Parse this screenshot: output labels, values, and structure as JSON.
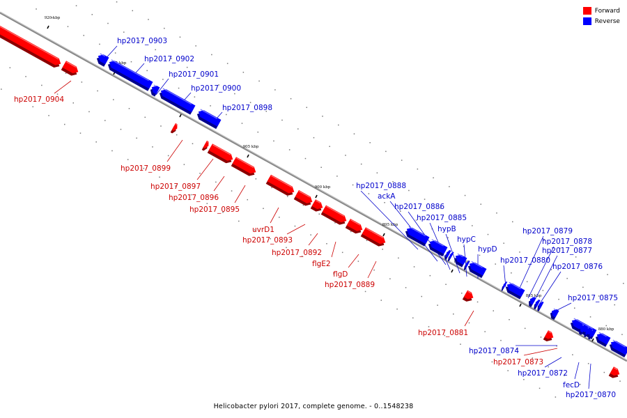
{
  "title": "Helicobacter pylori 2017, complete genome. - 0..1548238",
  "legend": [
    {
      "label": "Forward",
      "color": "#ff0000"
    },
    {
      "label": "Reverse",
      "color": "#0000ff"
    }
  ],
  "colors": {
    "forward": "#ff0000",
    "reverse": "#0000ff",
    "backbone": "#888888"
  },
  "ticks": [
    "920 kbp",
    "915 kbp",
    "910 kbp",
    "905 kbp",
    "900 kbp",
    "895 kbp",
    "890 kbp",
    "885 kbp",
    "880 kbp"
  ],
  "genes": [
    {
      "name": "",
      "strand": "forward"
    },
    {
      "name": "hp2017_0904",
      "strand": "forward"
    },
    {
      "name": "hp2017_0903",
      "strand": "reverse"
    },
    {
      "name": "hp2017_0902",
      "strand": "reverse"
    },
    {
      "name": "hp2017_0901",
      "strand": "reverse"
    },
    {
      "name": "hp2017_0900",
      "strand": "reverse"
    },
    {
      "name": "hp2017_0898",
      "strand": "reverse"
    },
    {
      "name": "hp2017_0899",
      "strand": "forward"
    },
    {
      "name": "hp2017_0897",
      "strand": "forward"
    },
    {
      "name": "hp2017_0896",
      "strand": "forward"
    },
    {
      "name": "hp2017_0895",
      "strand": "forward"
    },
    {
      "name": "uvrD1",
      "strand": "forward"
    },
    {
      "name": "hp2017_0893",
      "strand": "forward"
    },
    {
      "name": "hp2017_0892",
      "strand": "forward"
    },
    {
      "name": "flgE2",
      "strand": "forward"
    },
    {
      "name": "flgD",
      "strand": "forward"
    },
    {
      "name": "hp2017_0889",
      "strand": "forward"
    },
    {
      "name": "hp2017_0888",
      "strand": "reverse"
    },
    {
      "name": "ackA",
      "strand": "reverse"
    },
    {
      "name": "hp2017_0886",
      "strand": "reverse"
    },
    {
      "name": "hp2017_0885",
      "strand": "reverse"
    },
    {
      "name": "hypB",
      "strand": "reverse"
    },
    {
      "name": "hypC",
      "strand": "reverse"
    },
    {
      "name": "hypD",
      "strand": "reverse"
    },
    {
      "name": "hp2017_0881",
      "strand": "forward"
    },
    {
      "name": "hp2017_0880",
      "strand": "reverse"
    },
    {
      "name": "hp2017_0879",
      "strand": "reverse"
    },
    {
      "name": "hp2017_0878",
      "strand": "reverse"
    },
    {
      "name": "hp2017_0877",
      "strand": "reverse"
    },
    {
      "name": "hp2017_0876",
      "strand": "reverse"
    },
    {
      "name": "hp2017_0875",
      "strand": "reverse"
    },
    {
      "name": "hp2017_0874",
      "strand": "reverse"
    },
    {
      "name": "hp2017_0873",
      "strand": "forward"
    },
    {
      "name": "hp2017_0872",
      "strand": "reverse"
    },
    {
      "name": "fecD",
      "strand": "reverse"
    },
    {
      "name": "hp2017_0870",
      "strand": "reverse"
    },
    {
      "name": "",
      "strand": "reverse"
    },
    {
      "name": "",
      "strand": "reverse"
    },
    {
      "name": "",
      "strand": "reverse"
    },
    {
      "name": "",
      "strand": "forward"
    }
  ]
}
